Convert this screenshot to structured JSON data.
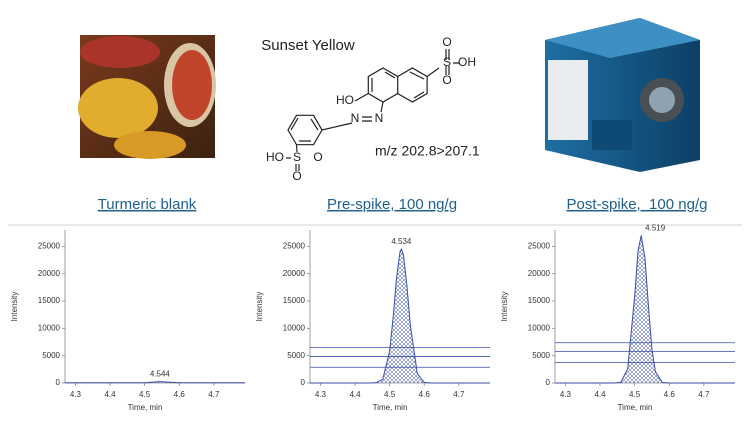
{
  "compound": "Sunset Yellow",
  "transition": "m/z 202.8>207.1",
  "structure": {
    "labels": [
      "O",
      "S",
      "OH",
      "O",
      "HO",
      "N",
      "N",
      "HO",
      "S",
      "O",
      "O"
    ]
  },
  "chart_data": [
    {
      "type": "line",
      "title": "Turmeric blank",
      "xlabel": "Time, min",
      "ylabel": "Intensity",
      "x": [
        4.27,
        4.5,
        4.544,
        4.6,
        4.79
      ],
      "values": [
        40,
        60,
        250,
        60,
        40
      ],
      "color": "#3a4ea8",
      "annotation": "4.544",
      "xlim": [
        4.27,
        4.79
      ],
      "ylim": [
        0,
        28000
      ],
      "xticks": [
        4.3,
        4.4,
        4.5,
        4.6,
        4.7
      ],
      "yticks": [
        0,
        5000,
        10000,
        15000,
        20000,
        25000
      ]
    },
    {
      "type": "line",
      "title": "Pre-spike, 100 ng/g",
      "xlabel": "Time, min",
      "ylabel": "Intensity",
      "x": [
        4.27,
        4.44,
        4.46,
        4.48,
        4.5,
        4.51,
        4.52,
        4.53,
        4.534,
        4.54,
        4.55,
        4.56,
        4.58,
        4.6,
        4.62,
        4.79
      ],
      "values": [
        0,
        0,
        30,
        640,
        5780,
        11930,
        19180,
        24010,
        24500,
        23420,
        17790,
        10530,
        1740,
        110,
        0,
        0
      ],
      "color": "#3a4ea8",
      "annotation": "4.534",
      "hlines": [
        6470,
        4860,
        2880
      ],
      "xlim": [
        4.27,
        4.79
      ],
      "ylim": [
        0,
        28000
      ],
      "xticks": [
        4.3,
        4.4,
        4.5,
        4.6,
        4.7
      ],
      "yticks": [
        0,
        5000,
        10000,
        15000,
        20000,
        25000
      ]
    },
    {
      "type": "line",
      "title": "Post-spike,  100 ng/g",
      "xlabel": "Time, min",
      "ylabel": "Intensity",
      "x": [
        4.27,
        4.44,
        4.46,
        4.48,
        4.5,
        4.51,
        4.519,
        4.53,
        4.54,
        4.55,
        4.56,
        4.58,
        4.6,
        4.79
      ],
      "values": [
        0,
        0,
        130,
        2620,
        15750,
        24260,
        27000,
        22820,
        13920,
        6240,
        2060,
        90,
        0,
        0
      ],
      "color": "#3a4ea8",
      "annotation": "4.519",
      "hlines": [
        7370,
        5760,
        3780
      ],
      "xlim": [
        4.27,
        4.79
      ],
      "ylim": [
        0,
        28000
      ],
      "xticks": [
        4.3,
        4.4,
        4.5,
        4.6,
        4.7
      ],
      "yticks": [
        0,
        5000,
        10000,
        15000,
        20000,
        25000
      ]
    }
  ]
}
